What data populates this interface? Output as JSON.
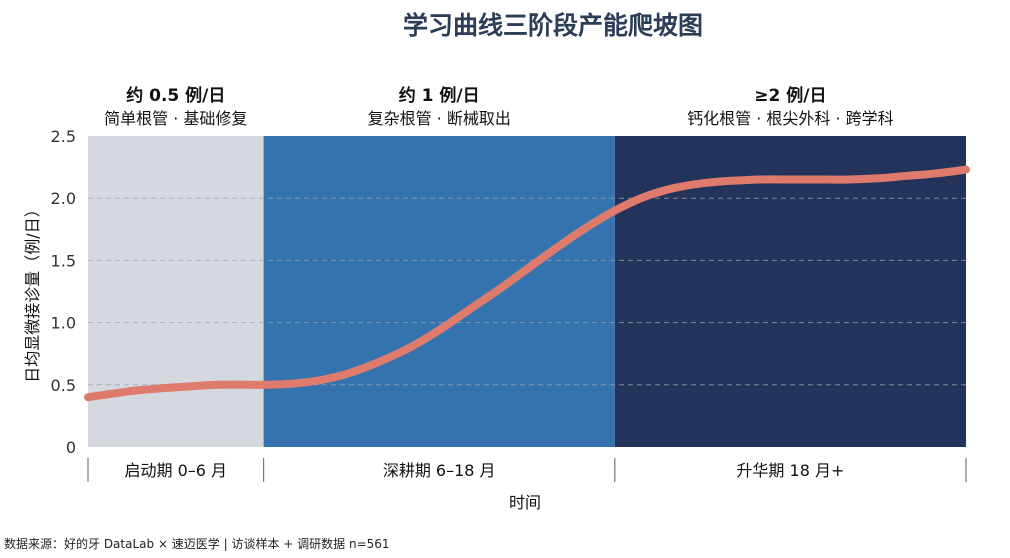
{
  "chart_data": {
    "type": "line",
    "title": "学习曲线三阶段产能爬坡图",
    "xlabel": "时间",
    "ylabel": "日均显微接诊量（例/日）",
    "ylim": [
      0,
      2.5
    ],
    "yticks": [
      "0",
      "0.5",
      "1.0",
      "1.5",
      "2.0",
      "2.5"
    ],
    "grid": "horizontal-dashed",
    "x_unit": "月",
    "xlim": [
      0,
      30
    ],
    "phases": [
      {
        "label": "启动期 0–6 月",
        "rate": "约 0.5 例/日",
        "cases": "简单根管 · 基础修复",
        "color": "#d5d8de",
        "start": 0,
        "end": 6
      },
      {
        "label": "深耕期 6–18 月",
        "rate": "约 1 例/日",
        "cases": "复杂根管 · 断械取出",
        "color": "#3473ad",
        "start": 6,
        "end": 18
      },
      {
        "label": "升华期 18 月+",
        "rate": "≥2 例/日",
        "cases": "钙化根管 · 根尖外科 · 跨学科",
        "color": "#23335b",
        "start": 18,
        "end": 30
      }
    ],
    "series": [
      {
        "color": "#de7b6c",
        "x": [
          0,
          1.5,
          3,
          4.5,
          6,
          7,
          8,
          9,
          10,
          11,
          12,
          13,
          14,
          15,
          16,
          17,
          18,
          19,
          20,
          21,
          22,
          23,
          24,
          25,
          26,
          27,
          28,
          29,
          30
        ],
        "y": [
          0.4,
          0.45,
          0.48,
          0.5,
          0.5,
          0.51,
          0.54,
          0.6,
          0.69,
          0.8,
          0.94,
          1.1,
          1.26,
          1.43,
          1.6,
          1.76,
          1.9,
          2.01,
          2.08,
          2.12,
          2.14,
          2.15,
          2.15,
          2.15,
          2.15,
          2.16,
          2.18,
          2.2,
          2.23
        ]
      }
    ]
  },
  "source_note": "数据来源：好的牙 DataLab × 速迈医学 | 访谈样本 + 调研数据 n=561"
}
